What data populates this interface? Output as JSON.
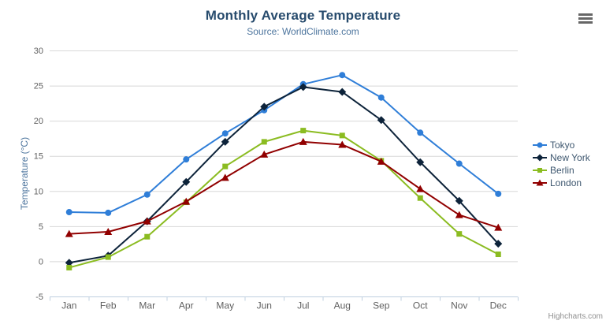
{
  "header": {
    "title": "Monthly Average Temperature",
    "subtitle": "Source: WorldClimate.com"
  },
  "icons": {
    "context_menu": "hamburger-menu-icon"
  },
  "credits": {
    "text": "Highcharts.com"
  },
  "chart_data": {
    "type": "line",
    "title": "Monthly Average Temperature",
    "subtitle": "Source: WorldClimate.com",
    "categories": [
      "Jan",
      "Feb",
      "Mar",
      "Apr",
      "May",
      "Jun",
      "Jul",
      "Aug",
      "Sep",
      "Oct",
      "Nov",
      "Dec"
    ],
    "xlabel": "",
    "ylabel": "Temperature (°C)",
    "ylim": [
      -5,
      30
    ],
    "yticks": [
      -5,
      0,
      5,
      10,
      15,
      20,
      25,
      30
    ],
    "grid": "horizontal",
    "legend_position": "right",
    "colors": {
      "grid": "#d8d8d8",
      "axis": "#c0d0e0",
      "tick_label": "#606060",
      "legend_text": "#3E576F"
    },
    "series": [
      {
        "name": "Tokyo",
        "color": "#2f7ed8",
        "marker": "circle",
        "values": [
          7.0,
          6.9,
          9.5,
          14.5,
          18.2,
          21.5,
          25.2,
          26.5,
          23.3,
          18.3,
          13.9,
          9.6
        ]
      },
      {
        "name": "New York",
        "color": "#0d233a",
        "marker": "diamond",
        "values": [
          -0.2,
          0.8,
          5.7,
          11.3,
          17.0,
          22.0,
          24.8,
          24.1,
          20.1,
          14.1,
          8.6,
          2.5
        ]
      },
      {
        "name": "Berlin",
        "color": "#8bbc21",
        "marker": "square",
        "values": [
          -0.9,
          0.6,
          3.5,
          8.4,
          13.5,
          17.0,
          18.6,
          17.9,
          14.3,
          9.0,
          3.9,
          1.0
        ]
      },
      {
        "name": "London",
        "color": "#910000",
        "marker": "triangle",
        "values": [
          3.9,
          4.2,
          5.7,
          8.5,
          11.9,
          15.2,
          17.0,
          16.6,
          14.2,
          10.3,
          6.6,
          4.8
        ]
      }
    ]
  }
}
